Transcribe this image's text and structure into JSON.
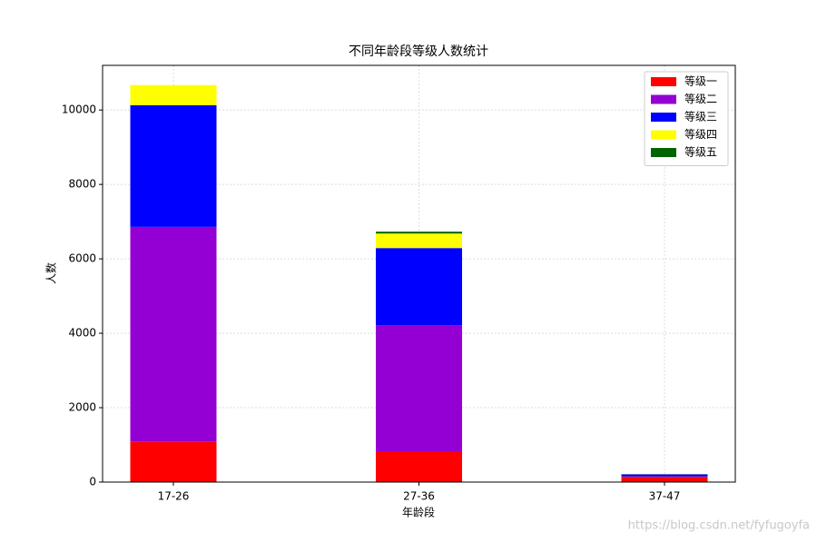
{
  "chart_data": {
    "type": "stacked_bar",
    "title": "不同年龄段等级人数统计",
    "x_label": "年龄段",
    "y_label": "人数",
    "categories": [
      "17-26",
      "27-36",
      "37-47"
    ],
    "series": [
      {
        "name": "等级一",
        "color": "#ff0000",
        "values": [
          1080,
          830,
          140
        ]
      },
      {
        "name": "等级二",
        "color": "#9400d3",
        "values": [
          5780,
          3390,
          10
        ]
      },
      {
        "name": "等级三",
        "color": "#0000ff",
        "values": [
          3270,
          2070,
          60
        ]
      },
      {
        "name": "等级四",
        "color": "#ffff00",
        "values": [
          540,
          390,
          5
        ]
      },
      {
        "name": "等级五",
        "color": "#006400",
        "values": [
          0,
          50,
          0
        ]
      }
    ],
    "ylim": [
      0,
      11200
    ],
    "yticks": [
      0,
      2000,
      4000,
      6000,
      8000,
      10000
    ],
    "grid": true,
    "legend": "upper right",
    "watermark": "https://blog.csdn.net/fyfugoyfa"
  }
}
